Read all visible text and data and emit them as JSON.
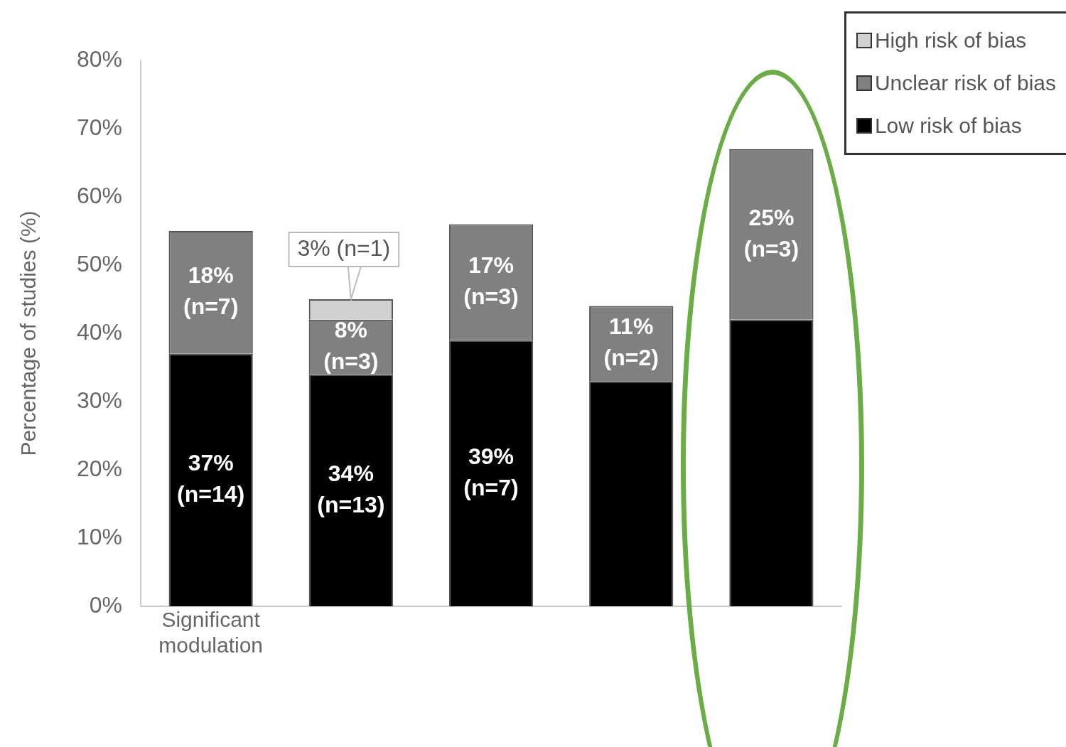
{
  "chart_data": {
    "type": "bar",
    "stacked": true,
    "ylabel": "Percentage of studies (%)",
    "categories": [
      "Significant modulation",
      null,
      null,
      null,
      null
    ],
    "series": [
      {
        "name": "Low risk of bias",
        "color": "#000000",
        "values": [
          37,
          34,
          39,
          33,
          42
        ],
        "value_labels": [
          "37%\n(n=14)",
          "34%\n(n=13)",
          "39%\n(n=7)",
          null,
          null
        ]
      },
      {
        "name": "Unclear risk of bias",
        "color": "#808080",
        "values": [
          18,
          8,
          17,
          11,
          25
        ],
        "value_labels": [
          "18%\n(n=7)",
          "8%\n(n=3)",
          "17%\n(n=3)",
          "11%\n(n=2)",
          "25%\n(n=3)"
        ]
      },
      {
        "name": "High risk of bias",
        "color": "#d0d0d0",
        "values": [
          null,
          3,
          null,
          null,
          null
        ],
        "value_labels": [
          null,
          "3% (n=1)",
          null,
          null,
          null
        ]
      }
    ],
    "ylim": [
      0,
      80
    ],
    "yticks": [
      {
        "value": 0,
        "label": "0%"
      },
      {
        "value": 10,
        "label": "10%"
      },
      {
        "value": 20,
        "label": "20%"
      },
      {
        "value": 30,
        "label": "30%"
      },
      {
        "value": 40,
        "label": "40%"
      },
      {
        "value": 50,
        "label": "50%"
      },
      {
        "value": 60,
        "label": "60%"
      },
      {
        "value": 70,
        "label": "70%"
      },
      {
        "value": 80,
        "label": "80%"
      }
    ],
    "grid": false,
    "legend": "top right"
  }
}
